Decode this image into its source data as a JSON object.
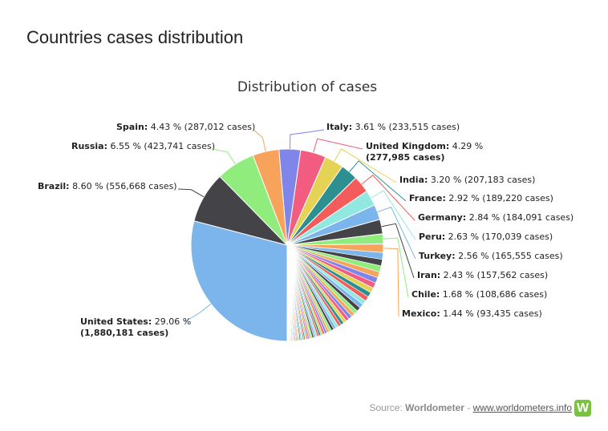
{
  "page": {
    "title": "Countries cases distribution"
  },
  "source": {
    "prefix": "Source:",
    "name": "Worldometer",
    "separator": "-",
    "link": "www.worldometers.info",
    "logo_letter": "W"
  },
  "chart_data": {
    "type": "pie",
    "title": "Distribution of cases",
    "slices": [
      {
        "name": "United States",
        "percent": 29.06,
        "cases": "1,880,181",
        "color": "#7cb5ec"
      },
      {
        "name": "Brazil",
        "percent": 8.6,
        "cases": "556,668",
        "color": "#434348"
      },
      {
        "name": "Russia",
        "percent": 6.55,
        "cases": "423,741",
        "color": "#90ed7d"
      },
      {
        "name": "Spain",
        "percent": 4.43,
        "cases": "287,012",
        "color": "#f7a35c"
      },
      {
        "name": "Italy",
        "percent": 3.61,
        "cases": "233,515",
        "color": "#8085e9"
      },
      {
        "name": "United Kingdom",
        "percent": 4.29,
        "cases": "277,985",
        "color": "#f15c80"
      },
      {
        "name": "India",
        "percent": 3.2,
        "cases": "207,183",
        "color": "#e4d354"
      },
      {
        "name": "France",
        "percent": 2.92,
        "cases": "189,220",
        "color": "#2b908f"
      },
      {
        "name": "Germany",
        "percent": 2.84,
        "cases": "184,091",
        "color": "#f45b5b"
      },
      {
        "name": "Peru",
        "percent": 2.63,
        "cases": "170,039",
        "color": "#91e8e1"
      },
      {
        "name": "Turkey",
        "percent": 2.56,
        "cases": "165,555",
        "color": "#7cb5ec"
      },
      {
        "name": "Iran",
        "percent": 2.43,
        "cases": "157,562",
        "color": "#434348"
      },
      {
        "name": "Chile",
        "percent": 1.68,
        "cases": "108,686",
        "color": "#90ed7d"
      },
      {
        "name": "Mexico",
        "percent": 1.44,
        "cases": "93,435",
        "color": "#f7a35c"
      }
    ],
    "unlabeled_remainder_percent": 23.76,
    "palette": [
      "#7cb5ec",
      "#434348",
      "#90ed7d",
      "#f7a35c",
      "#8085e9",
      "#f15c80",
      "#e4d354",
      "#2b908f",
      "#f45b5b",
      "#91e8e1"
    ]
  }
}
